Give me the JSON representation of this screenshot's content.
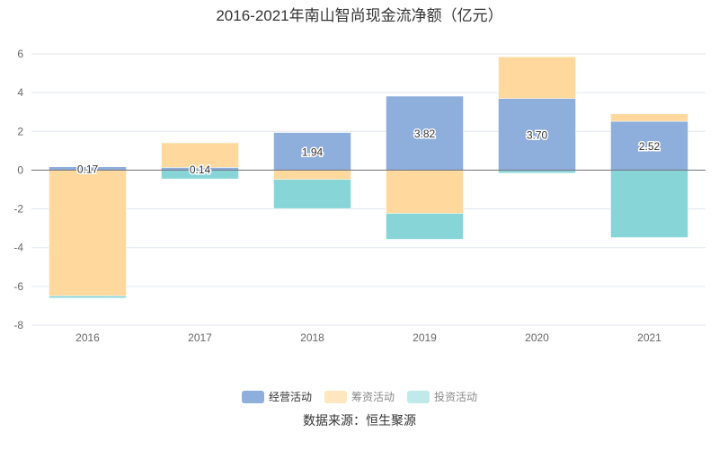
{
  "chart_data": {
    "type": "bar",
    "stacked": true,
    "title": "2016-2021年南山智尚现金流净额（亿元）",
    "categories": [
      "2016",
      "2017",
      "2018",
      "2019",
      "2020",
      "2021"
    ],
    "series": [
      {
        "name": "经营活动",
        "color": "#8eaedb",
        "values": [
          0.17,
          0.14,
          1.94,
          3.82,
          3.7,
          2.52
        ],
        "labels": [
          "0.17",
          "0.14",
          "1.94",
          "3.82",
          "3.70",
          "2.52"
        ]
      },
      {
        "name": "筹资活动",
        "color": "#fed89c",
        "values": [
          -6.49,
          1.27,
          -0.48,
          -2.23,
          2.15,
          0.39
        ]
      },
      {
        "name": "投资活动",
        "color": "#88d5d8",
        "values": [
          -0.11,
          -0.45,
          -1.5,
          -1.34,
          -0.15,
          -3.48
        ]
      }
    ],
    "legend_colors": [
      "#8eaedb",
      "#fee6c1",
      "#c0e9ea"
    ],
    "yticks": [
      6,
      4,
      2,
      0,
      -2,
      -4,
      -6,
      -8
    ],
    "ylim": [
      -8,
      6
    ],
    "xlabel": "",
    "ylabel": "",
    "grid": true,
    "legend_position": "bottom"
  },
  "source": "数据来源：恒生聚源"
}
